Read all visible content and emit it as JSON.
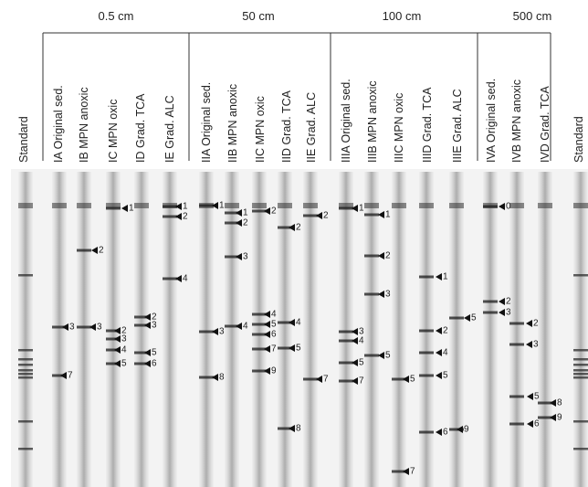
{
  "groups": [
    {
      "label": "0.5 cm"
    },
    {
      "label": "50 cm"
    },
    {
      "label": "100 cm"
    },
    {
      "label": "500 cm"
    }
  ],
  "lanes": [
    {
      "label": "Standard",
      "bands": []
    },
    {
      "label": "IA Original sed.",
      "bands": [
        "3",
        "7"
      ]
    },
    {
      "label": "IB MPN anoxic",
      "bands": [
        "2",
        "3"
      ]
    },
    {
      "label": "IC MPN oxic",
      "bands": [
        "1",
        "2",
        "3",
        "4",
        "5"
      ]
    },
    {
      "label": "ID Grad. TCA",
      "bands": [
        "2",
        "3",
        "5",
        "6"
      ]
    },
    {
      "label": "IE Grad. ALC",
      "bands": [
        "1",
        "2",
        "4"
      ]
    },
    {
      "label": "IIA Original sed.",
      "bands": [
        "1",
        "3",
        "8"
      ]
    },
    {
      "label": "IIB MPN anoxic",
      "bands": [
        "1",
        "2",
        "3",
        "4"
      ]
    },
    {
      "label": "IIC MPN oxic",
      "bands": [
        "2",
        "4",
        "5",
        "6",
        "7",
        "9"
      ]
    },
    {
      "label": "IID Grad. TCA",
      "bands": [
        "2",
        "4",
        "5",
        "8"
      ]
    },
    {
      "label": "IIE Grad. ALC",
      "bands": [
        "2",
        "7"
      ]
    },
    {
      "label": "IIIA Original sed.",
      "bands": [
        "1",
        "3",
        "4",
        "5",
        "7"
      ]
    },
    {
      "label": "IIIB MPN anoxic",
      "bands": [
        "1",
        "2",
        "3",
        "5"
      ]
    },
    {
      "label": "IIIC MPN oxic",
      "bands": [
        "5",
        "7"
      ]
    },
    {
      "label": "IIID Grad. TCA",
      "bands": [
        "1",
        "2",
        "4",
        "5",
        "6"
      ]
    },
    {
      "label": "IIIE Grad. ALC",
      "bands": [
        "5",
        "9"
      ]
    },
    {
      "label": "IVA Original sed.",
      "bands": [
        "0",
        "2",
        "3"
      ]
    },
    {
      "label": "IVB MPN anoxic",
      "bands": [
        "2",
        "3",
        "5",
        "6"
      ]
    },
    {
      "label": "IVD Grad. TCA",
      "bands": [
        "8",
        "9"
      ]
    },
    {
      "label": "Standard",
      "bands": []
    }
  ]
}
